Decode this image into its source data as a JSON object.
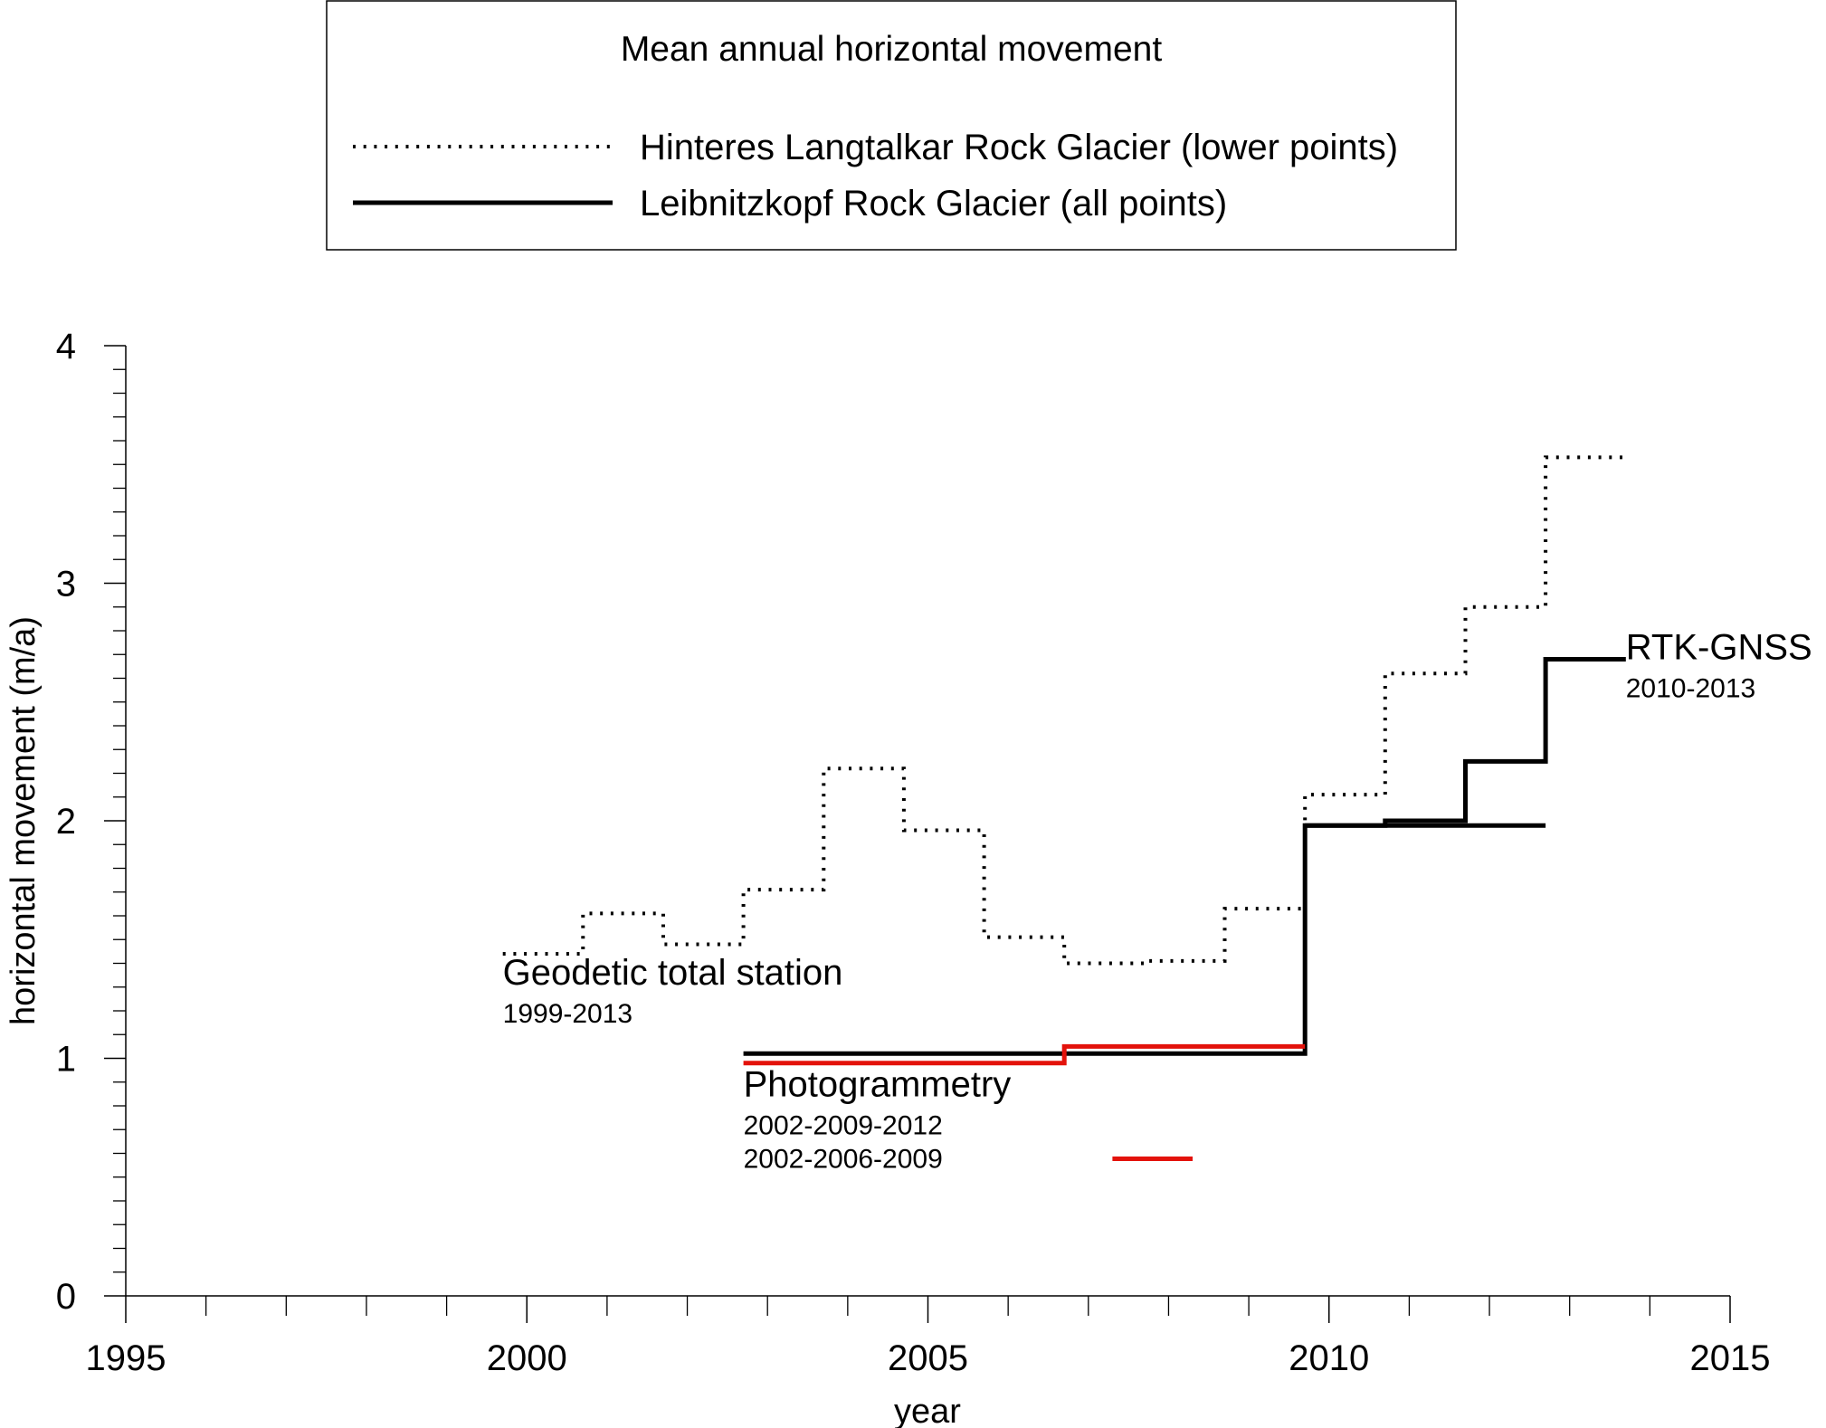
{
  "chart_data": {
    "type": "line",
    "step": true,
    "title": "",
    "xlabel": "year",
    "ylabel": "horizontal movement (m/a)",
    "xlim": [
      1995,
      2015
    ],
    "ylim": [
      0,
      4
    ],
    "x_ticks": [
      1995,
      2000,
      2005,
      2010,
      2015
    ],
    "y_ticks": [
      0,
      1,
      2,
      3,
      4
    ],
    "grid": false,
    "legend": {
      "title": "Mean annual horizontal movement",
      "placement": "top-center",
      "entries": [
        {
          "label": "Hinteres Langtalkar Rock Glacier (lower points)",
          "style": "dotted",
          "color": "#000000"
        },
        {
          "label": "Leibnitzkopf Rock Glacier (all points)",
          "style": "solid",
          "color": "#000000"
        }
      ]
    },
    "series": [
      {
        "style": "dotted",
        "color": "#000000",
        "segments": [
          {
            "x0": 1999.7,
            "x1": 2000.7,
            "y": 1.44
          },
          {
            "x0": 2000.7,
            "x1": 2001.7,
            "y": 1.61
          },
          {
            "x0": 2001.7,
            "x1": 2002.7,
            "y": 1.48
          },
          {
            "x0": 2002.7,
            "x1": 2003.7,
            "y": 1.71
          },
          {
            "x0": 2003.7,
            "x1": 2004.7,
            "y": 2.22
          },
          {
            "x0": 2004.7,
            "x1": 2005.7,
            "y": 1.96
          },
          {
            "x0": 2005.7,
            "x1": 2006.7,
            "y": 1.51
          },
          {
            "x0": 2006.7,
            "x1": 2007.7,
            "y": 1.4
          },
          {
            "x0": 2007.7,
            "x1": 2008.7,
            "y": 1.41
          },
          {
            "x0": 2008.7,
            "x1": 2009.7,
            "y": 1.63
          },
          {
            "x0": 2009.7,
            "x1": 2010.7,
            "y": 2.11
          },
          {
            "x0": 2010.7,
            "x1": 2011.7,
            "y": 2.62
          },
          {
            "x0": 2011.7,
            "x1": 2012.7,
            "y": 2.9
          },
          {
            "x0": 2012.7,
            "x1": 2013.7,
            "y": 3.53
          }
        ]
      },
      {
        "style": "solid",
        "color": "#000000",
        "segments": [
          {
            "x0": 2002.7,
            "x1": 2009.7,
            "y": 1.02
          },
          {
            "x0": 2009.7,
            "x1": 2012.7,
            "y": 1.98
          }
        ]
      },
      {
        "style": "solid",
        "color": "#000000",
        "segments": [
          {
            "x0": 2009.7,
            "x1": 2010.7,
            "y": 1.98
          },
          {
            "x0": 2010.7,
            "x1": 2011.7,
            "y": 2.0
          },
          {
            "x0": 2011.7,
            "x1": 2012.7,
            "y": 2.25
          },
          {
            "x0": 2012.7,
            "x1": 2013.7,
            "y": 2.68
          }
        ]
      },
      {
        "style": "solid",
        "color": "#e3120b",
        "segments": [
          {
            "x0": 2002.7,
            "x1": 2006.7,
            "y": 0.98
          },
          {
            "x0": 2006.7,
            "x1": 2009.7,
            "y": 1.05
          }
        ]
      }
    ],
    "annotations": [
      {
        "text": "Geodetic total station",
        "sub": [
          "1999-2013"
        ],
        "x": 1999.7,
        "y": 1.31
      },
      {
        "text": "Photogrammetry",
        "sub": [
          "2002-2009-2012",
          "2002-2006-2009"
        ],
        "x": 2002.7,
        "y": 0.84,
        "sub_key": {
          "index": 1,
          "color": "#e3120b",
          "x0": 2007.3,
          "x1": 2008.3
        }
      },
      {
        "text": "RTK-GNSS",
        "sub": [
          "2010-2013"
        ],
        "x": 2013.7,
        "y": 2.68
      }
    ]
  }
}
